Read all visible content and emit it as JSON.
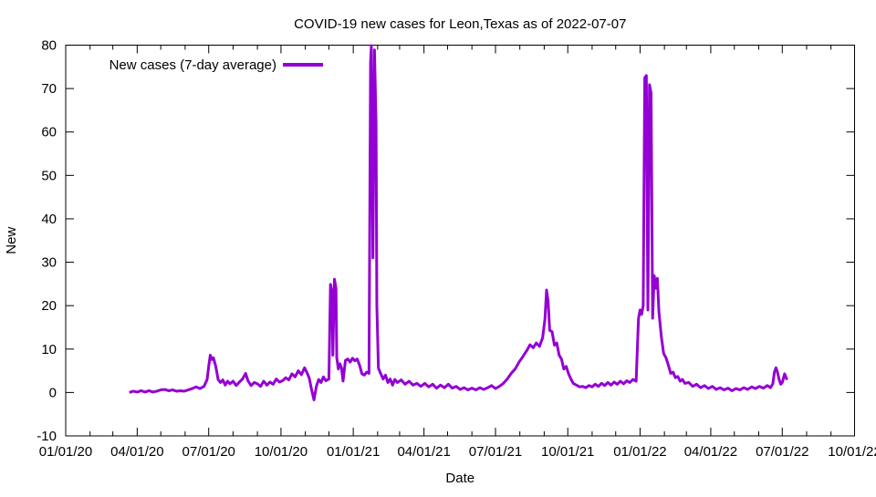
{
  "page": {
    "background": "#ffffff"
  },
  "chart_data": {
    "type": "line",
    "title": "COVID-19 new cases for Leon,Texas as of 2022-07-07",
    "xlabel": "Date",
    "ylabel": "New",
    "ylim": [
      -10,
      80
    ],
    "y_ticks": [
      -10,
      0,
      10,
      20,
      30,
      40,
      50,
      60,
      70,
      80
    ],
    "x_range": [
      "2020-01-01",
      "2022-10-01"
    ],
    "x_tick_labels": [
      "01/01/20",
      "04/01/20",
      "07/01/20",
      "10/01/20",
      "01/01/21",
      "04/01/21",
      "07/01/21",
      "10/01/21",
      "01/01/22",
      "04/01/22",
      "07/01/22",
      "10/01/22"
    ],
    "x_minor_ticks": "monthly",
    "grid": false,
    "legend_position": "top-left",
    "axis_color": "#000000",
    "background_color": "#ffffff",
    "series": [
      {
        "name": "New cases (7-day average)",
        "color": "#9400d3",
        "points": [
          [
            "2020-03-22",
            0.0
          ],
          [
            "2020-03-27",
            0.3
          ],
          [
            "2020-04-01",
            0.1
          ],
          [
            "2020-04-06",
            0.4
          ],
          [
            "2020-04-11",
            0.1
          ],
          [
            "2020-04-16",
            0.4
          ],
          [
            "2020-04-21",
            0.1
          ],
          [
            "2020-04-26",
            0.3
          ],
          [
            "2020-05-01",
            0.6
          ],
          [
            "2020-05-06",
            0.7
          ],
          [
            "2020-05-11",
            0.4
          ],
          [
            "2020-05-16",
            0.6
          ],
          [
            "2020-05-21",
            0.3
          ],
          [
            "2020-05-26",
            0.4
          ],
          [
            "2020-05-31",
            0.3
          ],
          [
            "2020-06-05",
            0.6
          ],
          [
            "2020-06-10",
            0.9
          ],
          [
            "2020-06-15",
            1.3
          ],
          [
            "2020-06-20",
            0.9
          ],
          [
            "2020-06-25",
            1.4
          ],
          [
            "2020-06-29",
            3.0
          ],
          [
            "2020-07-01",
            6.0
          ],
          [
            "2020-07-03",
            8.6
          ],
          [
            "2020-07-05",
            7.6
          ],
          [
            "2020-07-07",
            8.0
          ],
          [
            "2020-07-10",
            6.0
          ],
          [
            "2020-07-13",
            3.0
          ],
          [
            "2020-07-16",
            2.3
          ],
          [
            "2020-07-19",
            2.9
          ],
          [
            "2020-07-22",
            1.7
          ],
          [
            "2020-07-25",
            2.6
          ],
          [
            "2020-07-28",
            2.0
          ],
          [
            "2020-08-01",
            2.6
          ],
          [
            "2020-08-05",
            1.6
          ],
          [
            "2020-08-09",
            2.4
          ],
          [
            "2020-08-13",
            3.1
          ],
          [
            "2020-08-17",
            4.4
          ],
          [
            "2020-08-20",
            2.7
          ],
          [
            "2020-08-24",
            1.6
          ],
          [
            "2020-08-28",
            2.3
          ],
          [
            "2020-09-01",
            2.0
          ],
          [
            "2020-09-05",
            1.4
          ],
          [
            "2020-09-09",
            2.6
          ],
          [
            "2020-09-13",
            1.7
          ],
          [
            "2020-09-17",
            2.4
          ],
          [
            "2020-09-21",
            1.9
          ],
          [
            "2020-09-25",
            3.1
          ],
          [
            "2020-09-29",
            2.4
          ],
          [
            "2020-10-03",
            2.7
          ],
          [
            "2020-10-07",
            3.4
          ],
          [
            "2020-10-11",
            2.9
          ],
          [
            "2020-10-15",
            4.3
          ],
          [
            "2020-10-19",
            3.6
          ],
          [
            "2020-10-23",
            5.0
          ],
          [
            "2020-10-27",
            4.1
          ],
          [
            "2020-10-31",
            5.7
          ],
          [
            "2020-11-03",
            4.6
          ],
          [
            "2020-11-06",
            3.3
          ],
          [
            "2020-11-09",
            0.6
          ],
          [
            "2020-11-12",
            -1.7
          ],
          [
            "2020-11-15",
            1.4
          ],
          [
            "2020-11-18",
            3.0
          ],
          [
            "2020-11-21",
            2.3
          ],
          [
            "2020-11-24",
            3.6
          ],
          [
            "2020-11-27",
            2.7
          ],
          [
            "2020-12-01",
            3.1
          ],
          [
            "2020-12-03",
            24.9
          ],
          [
            "2020-12-05",
            23.0
          ],
          [
            "2020-12-06",
            8.6
          ],
          [
            "2020-12-08",
            26.1
          ],
          [
            "2020-12-10",
            24.0
          ],
          [
            "2020-12-11",
            8.0
          ],
          [
            "2020-12-13",
            5.4
          ],
          [
            "2020-12-15",
            6.6
          ],
          [
            "2020-12-17",
            5.7
          ],
          [
            "2020-12-19",
            2.6
          ],
          [
            "2020-12-22",
            7.4
          ],
          [
            "2020-12-25",
            7.7
          ],
          [
            "2020-12-28",
            7.0
          ],
          [
            "2020-12-31",
            7.9
          ],
          [
            "2021-01-03",
            7.3
          ],
          [
            "2021-01-06",
            7.7
          ],
          [
            "2021-01-09",
            6.3
          ],
          [
            "2021-01-12",
            4.3
          ],
          [
            "2021-01-15",
            4.0
          ],
          [
            "2021-01-18",
            4.7
          ],
          [
            "2021-01-21",
            4.4
          ],
          [
            "2021-01-23",
            76.0
          ],
          [
            "2021-01-24",
            79.9
          ],
          [
            "2021-01-26",
            31.0
          ],
          [
            "2021-01-28",
            78.9
          ],
          [
            "2021-01-30",
            62.0
          ],
          [
            "2021-01-31",
            20.0
          ],
          [
            "2021-02-02",
            5.6
          ],
          [
            "2021-02-05",
            4.3
          ],
          [
            "2021-02-08",
            3.1
          ],
          [
            "2021-02-11",
            4.0
          ],
          [
            "2021-02-14",
            2.3
          ],
          [
            "2021-02-17",
            3.1
          ],
          [
            "2021-02-20",
            1.7
          ],
          [
            "2021-02-23",
            3.0
          ],
          [
            "2021-02-26",
            2.3
          ],
          [
            "2021-03-03",
            2.9
          ],
          [
            "2021-03-08",
            1.9
          ],
          [
            "2021-03-13",
            2.6
          ],
          [
            "2021-03-18",
            1.7
          ],
          [
            "2021-03-23",
            2.1
          ],
          [
            "2021-03-28",
            1.4
          ],
          [
            "2021-04-02",
            2.1
          ],
          [
            "2021-04-07",
            1.3
          ],
          [
            "2021-04-12",
            1.9
          ],
          [
            "2021-04-17",
            1.0
          ],
          [
            "2021-04-22",
            1.7
          ],
          [
            "2021-04-27",
            1.1
          ],
          [
            "2021-05-02",
            1.9
          ],
          [
            "2021-05-07",
            1.0
          ],
          [
            "2021-05-12",
            1.4
          ],
          [
            "2021-05-17",
            0.7
          ],
          [
            "2021-05-22",
            1.1
          ],
          [
            "2021-05-27",
            0.6
          ],
          [
            "2021-06-01",
            1.0
          ],
          [
            "2021-06-06",
            0.6
          ],
          [
            "2021-06-11",
            1.1
          ],
          [
            "2021-06-16",
            0.7
          ],
          [
            "2021-06-21",
            1.1
          ],
          [
            "2021-06-26",
            1.6
          ],
          [
            "2021-07-01",
            0.9
          ],
          [
            "2021-07-06",
            1.4
          ],
          [
            "2021-07-11",
            2.1
          ],
          [
            "2021-07-16",
            3.1
          ],
          [
            "2021-07-21",
            4.4
          ],
          [
            "2021-07-26",
            5.4
          ],
          [
            "2021-07-31",
            7.0
          ],
          [
            "2021-08-05",
            8.3
          ],
          [
            "2021-08-10",
            9.7
          ],
          [
            "2021-08-14",
            11.0
          ],
          [
            "2021-08-18",
            10.3
          ],
          [
            "2021-08-22",
            11.4
          ],
          [
            "2021-08-26",
            10.6
          ],
          [
            "2021-08-30",
            12.6
          ],
          [
            "2021-09-02",
            17.0
          ],
          [
            "2021-09-04",
            23.6
          ],
          [
            "2021-09-06",
            21.0
          ],
          [
            "2021-09-08",
            14.3
          ],
          [
            "2021-09-11",
            14.0
          ],
          [
            "2021-09-14",
            10.9
          ],
          [
            "2021-09-17",
            11.4
          ],
          [
            "2021-09-20",
            8.6
          ],
          [
            "2021-09-23",
            7.7
          ],
          [
            "2021-09-26",
            5.4
          ],
          [
            "2021-09-29",
            6.0
          ],
          [
            "2021-10-02",
            4.3
          ],
          [
            "2021-10-05",
            3.1
          ],
          [
            "2021-10-08",
            2.1
          ],
          [
            "2021-10-12",
            1.7
          ],
          [
            "2021-10-16",
            1.3
          ],
          [
            "2021-10-20",
            1.4
          ],
          [
            "2021-10-24",
            1.1
          ],
          [
            "2021-10-28",
            1.6
          ],
          [
            "2021-11-01",
            1.3
          ],
          [
            "2021-11-05",
            1.9
          ],
          [
            "2021-11-09",
            1.4
          ],
          [
            "2021-11-13",
            2.1
          ],
          [
            "2021-11-17",
            1.6
          ],
          [
            "2021-11-21",
            2.3
          ],
          [
            "2021-11-25",
            1.7
          ],
          [
            "2021-11-29",
            2.4
          ],
          [
            "2021-12-03",
            1.9
          ],
          [
            "2021-12-07",
            2.6
          ],
          [
            "2021-12-11",
            2.0
          ],
          [
            "2021-12-15",
            2.7
          ],
          [
            "2021-12-19",
            2.3
          ],
          [
            "2021-12-23",
            3.0
          ],
          [
            "2021-12-27",
            2.6
          ],
          [
            "2021-12-30",
            17.0
          ],
          [
            "2022-01-01",
            19.0
          ],
          [
            "2022-01-03",
            18.0
          ],
          [
            "2022-01-05",
            20.0
          ],
          [
            "2022-01-07",
            72.5
          ],
          [
            "2022-01-09",
            73.0
          ],
          [
            "2022-01-11",
            19.0
          ],
          [
            "2022-01-13",
            70.9
          ],
          [
            "2022-01-15",
            69.0
          ],
          [
            "2022-01-17",
            17.1
          ],
          [
            "2022-01-19",
            26.9
          ],
          [
            "2022-01-21",
            24.0
          ],
          [
            "2022-01-23",
            26.3
          ],
          [
            "2022-01-25",
            18.6
          ],
          [
            "2022-01-28",
            13.0
          ],
          [
            "2022-01-31",
            9.0
          ],
          [
            "2022-02-03",
            8.0
          ],
          [
            "2022-02-06",
            6.3
          ],
          [
            "2022-02-09",
            4.4
          ],
          [
            "2022-02-12",
            4.7
          ],
          [
            "2022-02-15",
            3.4
          ],
          [
            "2022-02-18",
            3.7
          ],
          [
            "2022-02-21",
            2.6
          ],
          [
            "2022-02-24",
            3.0
          ],
          [
            "2022-02-27",
            2.1
          ],
          [
            "2022-03-04",
            2.3
          ],
          [
            "2022-03-09",
            1.4
          ],
          [
            "2022-03-14",
            1.9
          ],
          [
            "2022-03-19",
            1.1
          ],
          [
            "2022-03-24",
            1.6
          ],
          [
            "2022-03-29",
            0.9
          ],
          [
            "2022-04-03",
            1.4
          ],
          [
            "2022-04-08",
            0.7
          ],
          [
            "2022-04-13",
            1.1
          ],
          [
            "2022-04-18",
            0.6
          ],
          [
            "2022-04-23",
            1.0
          ],
          [
            "2022-04-28",
            0.4
          ],
          [
            "2022-05-03",
            0.9
          ],
          [
            "2022-05-08",
            0.6
          ],
          [
            "2022-05-13",
            1.1
          ],
          [
            "2022-05-18",
            0.7
          ],
          [
            "2022-05-23",
            1.3
          ],
          [
            "2022-05-28",
            0.9
          ],
          [
            "2022-06-02",
            1.4
          ],
          [
            "2022-06-07",
            1.0
          ],
          [
            "2022-06-12",
            1.6
          ],
          [
            "2022-06-16",
            1.1
          ],
          [
            "2022-06-19",
            2.0
          ],
          [
            "2022-06-21",
            4.7
          ],
          [
            "2022-06-23",
            5.7
          ],
          [
            "2022-06-25",
            4.6
          ],
          [
            "2022-06-27",
            3.0
          ],
          [
            "2022-06-29",
            1.9
          ],
          [
            "2022-07-01",
            2.3
          ],
          [
            "2022-07-04",
            4.3
          ],
          [
            "2022-07-07",
            2.9
          ]
        ]
      }
    ]
  }
}
